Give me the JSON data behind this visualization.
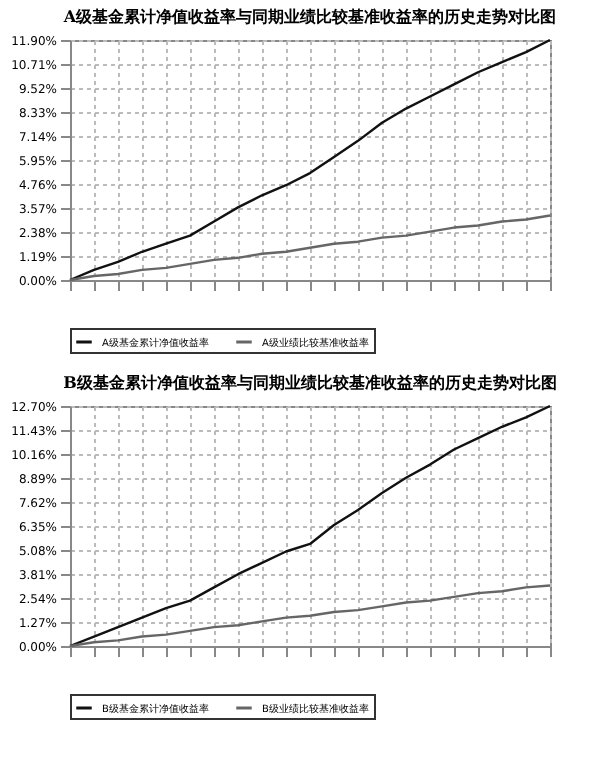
{
  "chart_data": [
    {
      "type": "line",
      "title": "A级基金累计净值收益率与同期业绩比较基准收益率的历史走势对比图",
      "categories": [
        null,
        null,
        null,
        null,
        null,
        null,
        null,
        null,
        null,
        null,
        null,
        null,
        null,
        null,
        null,
        null,
        null,
        null,
        null,
        null,
        null
      ],
      "series": [
        {
          "name": "A级基金累计净值收益率",
          "color": "#111111",
          "values": [
            0,
            0.5,
            0.9,
            1.4,
            1.8,
            2.2,
            2.9,
            3.6,
            4.2,
            4.7,
            5.3,
            6.1,
            6.9,
            7.8,
            8.5,
            9.1,
            9.7,
            10.3,
            10.8,
            11.3,
            11.9
          ]
        },
        {
          "name": "A级业绩比较基准收益率",
          "color": "#666666",
          "values": [
            0,
            0.2,
            0.3,
            0.5,
            0.6,
            0.8,
            1,
            1.1,
            1.3,
            1.4,
            1.6,
            1.8,
            1.9,
            2.1,
            2.2,
            2.4,
            2.6,
            2.7,
            2.9,
            3,
            3.2
          ]
        }
      ],
      "ylim": [
        0,
        11.9
      ],
      "yticks": [
        {
          "value": 0,
          "label": "0.00%"
        },
        {
          "value": 1.19,
          "label": "1.19%"
        },
        {
          "value": 2.38,
          "label": "2.38%"
        },
        {
          "value": 3.57,
          "label": "3.57%"
        },
        {
          "value": 4.76,
          "label": "4.76%"
        },
        {
          "value": 5.95,
          "label": "5.95%"
        },
        {
          "value": 7.14,
          "label": "7.14%"
        },
        {
          "value": 8.33,
          "label": "8.33%"
        },
        {
          "value": 9.52,
          "label": "9.52%"
        },
        {
          "value": 10.71,
          "label": "10.71%"
        },
        {
          "value": 11.9,
          "label": "11.90%"
        }
      ],
      "grid": true,
      "legend": "bottom",
      "tick_labels": "y"
    },
    {
      "type": "line",
      "title": "B级基金累计净值收益率与同期业绩比较基准收益率的历史走势对比图",
      "categories": [
        null,
        null,
        null,
        null,
        null,
        null,
        null,
        null,
        null,
        null,
        null,
        null,
        null,
        null,
        null,
        null,
        null,
        null,
        null,
        null,
        null
      ],
      "series": [
        {
          "name": "B级基金累计净值收益率",
          "color": "#111111",
          "values": [
            0,
            0.5,
            1,
            1.5,
            2,
            2.4,
            3.1,
            3.8,
            4.4,
            5,
            5.4,
            6.4,
            7.2,
            8.1,
            8.9,
            9.6,
            10.4,
            11,
            11.6,
            12.1,
            12.7
          ]
        },
        {
          "name": "B级业绩比较基准收益率",
          "color": "#666666",
          "values": [
            0,
            0.2,
            0.3,
            0.5,
            0.6,
            0.8,
            1,
            1.1,
            1.3,
            1.5,
            1.6,
            1.8,
            1.9,
            2.1,
            2.3,
            2.4,
            2.6,
            2.8,
            2.9,
            3.1,
            3.2
          ]
        }
      ],
      "ylim": [
        0,
        12.7
      ],
      "yticks": [
        {
          "value": 0,
          "label": "0.00%"
        },
        {
          "value": 1.27,
          "label": "1.27%"
        },
        {
          "value": 2.54,
          "label": "2.54%"
        },
        {
          "value": 3.81,
          "label": "3.81%"
        },
        {
          "value": 5.08,
          "label": "5.08%"
        },
        {
          "value": 6.35,
          "label": "6.35%"
        },
        {
          "value": 7.62,
          "label": "7.62%"
        },
        {
          "value": 8.89,
          "label": "8.89%"
        },
        {
          "value": 10.16,
          "label": "10.16%"
        },
        {
          "value": 11.43,
          "label": "11.43%"
        },
        {
          "value": 12.7,
          "label": "12.70%"
        }
      ],
      "grid": true,
      "legend": "bottom",
      "tick_labels": "y"
    }
  ]
}
